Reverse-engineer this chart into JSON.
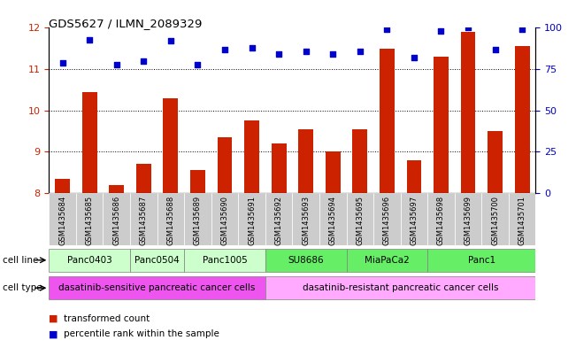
{
  "title": "GDS5627 / ILMN_2089329",
  "samples": [
    "GSM1435684",
    "GSM1435685",
    "GSM1435686",
    "GSM1435687",
    "GSM1435688",
    "GSM1435689",
    "GSM1435690",
    "GSM1435691",
    "GSM1435692",
    "GSM1435693",
    "GSM1435694",
    "GSM1435695",
    "GSM1435696",
    "GSM1435697",
    "GSM1435698",
    "GSM1435699",
    "GSM1435700",
    "GSM1435701"
  ],
  "bar_values": [
    8.35,
    10.45,
    8.2,
    8.7,
    10.3,
    8.55,
    9.35,
    9.75,
    9.2,
    9.55,
    9.0,
    9.55,
    11.5,
    8.8,
    11.3,
    11.9,
    9.5,
    11.55
  ],
  "dot_values": [
    79,
    93,
    78,
    80,
    92,
    78,
    87,
    88,
    84,
    86,
    84,
    86,
    99,
    82,
    98,
    100,
    87,
    99
  ],
  "ylim_left": [
    8,
    12
  ],
  "ylim_right": [
    0,
    100
  ],
  "yticks_left": [
    8,
    9,
    10,
    11,
    12
  ],
  "yticks_right": [
    0,
    25,
    50,
    75,
    100
  ],
  "bar_color": "#CC2200",
  "dot_color": "#0000CC",
  "cell_lines": [
    {
      "label": "Panc0403",
      "start": 0,
      "end": 2,
      "color": "#CCFFCC"
    },
    {
      "label": "Panc0504",
      "start": 3,
      "end": 4,
      "color": "#CCFFCC"
    },
    {
      "label": "Panc1005",
      "start": 5,
      "end": 7,
      "color": "#CCFFCC"
    },
    {
      "label": "SU8686",
      "start": 8,
      "end": 10,
      "color": "#66EE66"
    },
    {
      "label": "MiaPaCa2",
      "start": 11,
      "end": 13,
      "color": "#66EE66"
    },
    {
      "label": "Panc1",
      "start": 14,
      "end": 17,
      "color": "#66EE66"
    }
  ],
  "cell_types": [
    {
      "label": "dasatinib-sensitive pancreatic cancer cells",
      "start": 0,
      "end": 7,
      "color": "#EE55EE"
    },
    {
      "label": "dasatinib-resistant pancreatic cancer cells",
      "start": 8,
      "end": 17,
      "color": "#FFAAFF"
    }
  ],
  "tick_bg_color": "#CCCCCC",
  "legend_bar_label": "transformed count",
  "legend_dot_label": "percentile rank within the sample",
  "bar_color_label": "#CC0000",
  "dot_color_label": "#0000CC"
}
